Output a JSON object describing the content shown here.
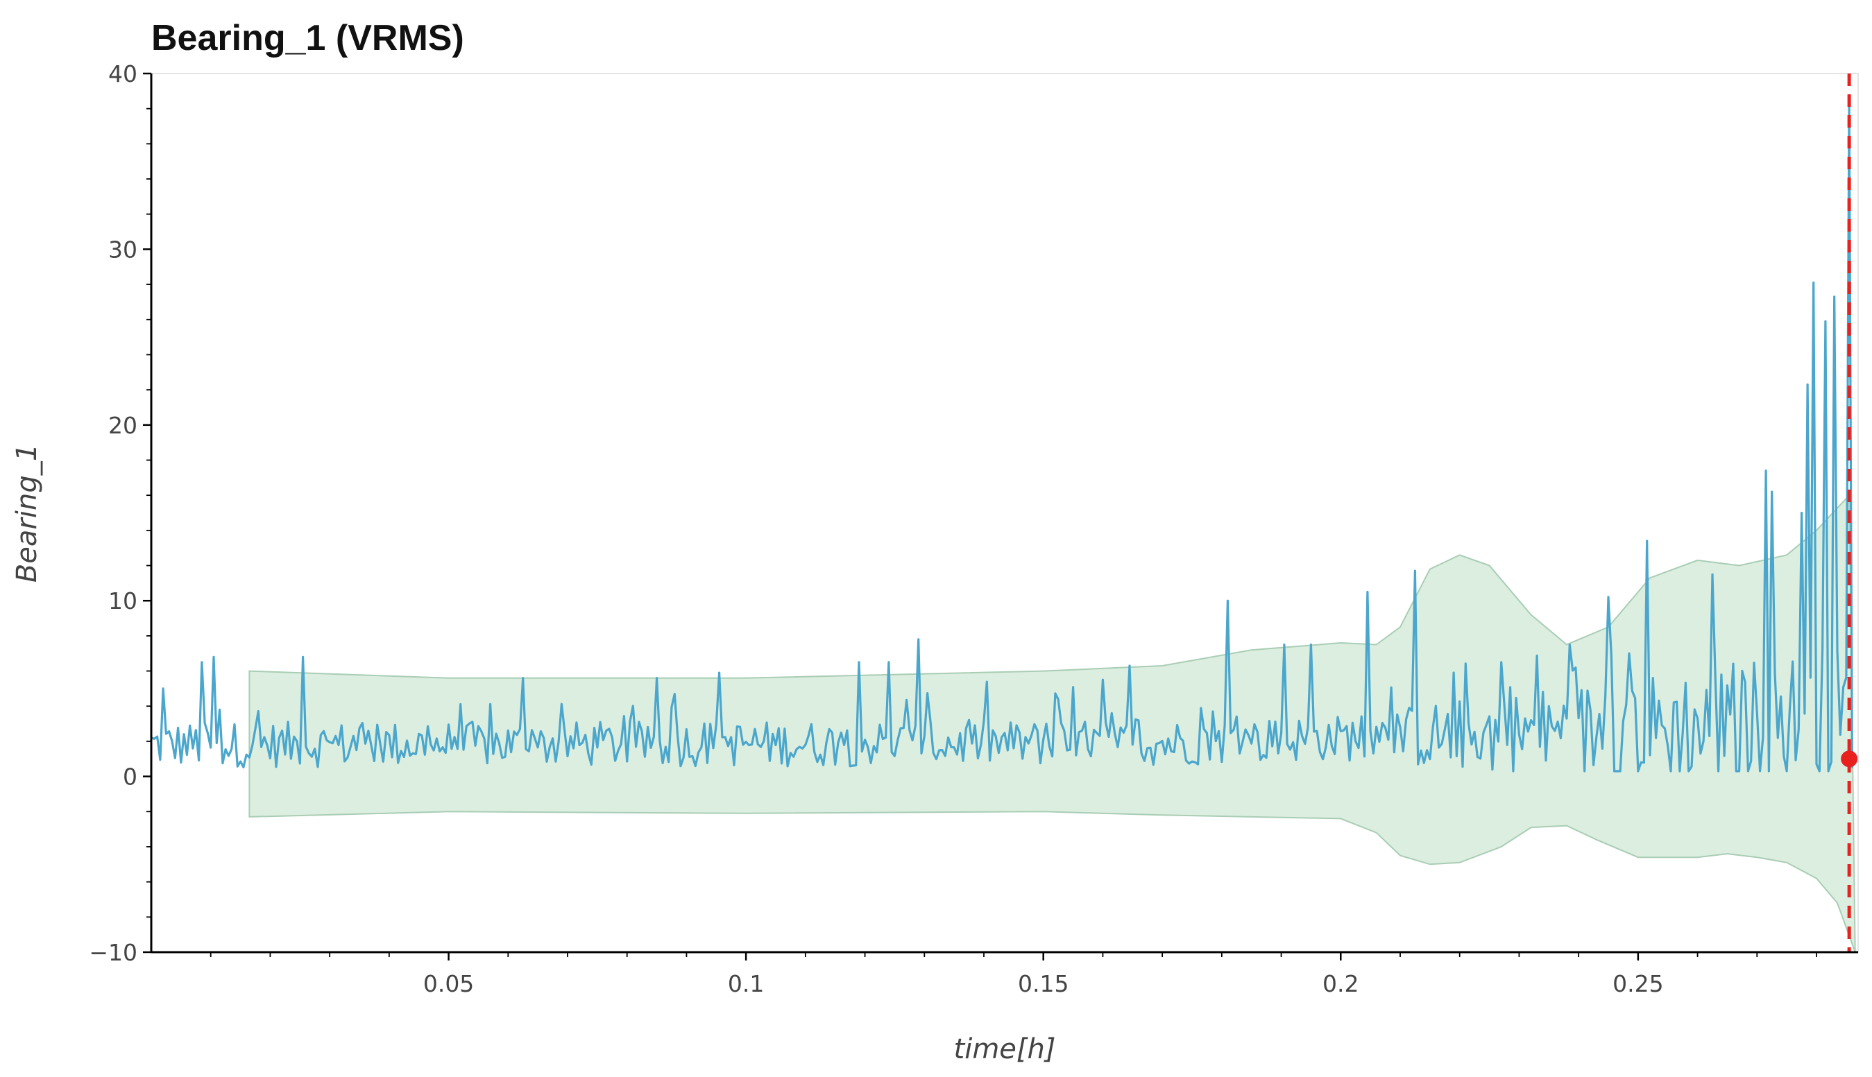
{
  "colors": {
    "line": "#4aa6cc",
    "band_fill": "#cfe8d6",
    "band_stroke": "#a9cdb4",
    "threshold": "#e8201e",
    "axis": "#000000",
    "text": "#444444"
  },
  "chart_data": {
    "type": "line",
    "title": "Bearing_1 (VRMS)",
    "xlabel": "time[h]",
    "ylabel": "Bearing_1",
    "xlim": [
      0.0,
      0.287
    ],
    "ylim": [
      -10,
      40
    ],
    "x_ticks": [
      0.05,
      0.1,
      0.15,
      0.2,
      0.25
    ],
    "x_tick_labels": [
      "0.05",
      "0.1",
      "0.15",
      "0.2",
      "0.25"
    ],
    "y_ticks": [
      -10,
      0,
      10,
      20,
      30,
      40
    ],
    "y_tick_labels": [
      "−10",
      "0",
      "10",
      "20",
      "30",
      "40"
    ],
    "grid": false,
    "threshold_x": 0.2855,
    "end_point": {
      "x": 0.2855,
      "y": 1.0
    },
    "series": [
      {
        "kind": "line",
        "sampling_dx": 0.0005,
        "base_level": [
          {
            "x": 0.0,
            "y": 1.8
          },
          {
            "x": 0.17,
            "y": 1.9
          },
          {
            "x": 0.2,
            "y": 2.2
          },
          {
            "x": 0.25,
            "y": 2.6
          },
          {
            "x": 0.28,
            "y": 3.0
          },
          {
            "x": 0.2865,
            "y": 3.2
          }
        ],
        "peaks": [
          {
            "x": 0.002,
            "y": 5.0
          },
          {
            "x": 0.0085,
            "y": 6.5
          },
          {
            "x": 0.0105,
            "y": 6.8
          },
          {
            "x": 0.0255,
            "y": 6.8
          },
          {
            "x": 0.0625,
            "y": 5.6
          },
          {
            "x": 0.085,
            "y": 5.6
          },
          {
            "x": 0.0955,
            "y": 5.9
          },
          {
            "x": 0.119,
            "y": 6.5
          },
          {
            "x": 0.124,
            "y": 6.5
          },
          {
            "x": 0.129,
            "y": 7.8
          },
          {
            "x": 0.16,
            "y": 5.5
          },
          {
            "x": 0.1645,
            "y": 6.3
          },
          {
            "x": 0.181,
            "y": 10.0
          },
          {
            "x": 0.1905,
            "y": 7.5
          },
          {
            "x": 0.195,
            "y": 7.5
          },
          {
            "x": 0.2045,
            "y": 10.5
          },
          {
            "x": 0.2125,
            "y": 11.7
          },
          {
            "x": 0.227,
            "y": 6.5
          },
          {
            "x": 0.2385,
            "y": 7.5
          },
          {
            "x": 0.2455,
            "y": 6.9
          },
          {
            "x": 0.2515,
            "y": 13.4
          },
          {
            "x": 0.2625,
            "y": 11.5
          },
          {
            "x": 0.2715,
            "y": 17.4
          },
          {
            "x": 0.2725,
            "y": 16.2
          },
          {
            "x": 0.2775,
            "y": 15.0
          },
          {
            "x": 0.2785,
            "y": 22.3
          },
          {
            "x": 0.2795,
            "y": 28.1
          },
          {
            "x": 0.2815,
            "y": 25.9
          },
          {
            "x": 0.283,
            "y": 27.3
          },
          {
            "x": 0.2855,
            "y": 38.3
          }
        ]
      },
      {
        "kind": "band",
        "upper": [
          {
            "x": 0.0165,
            "y": 6.0
          },
          {
            "x": 0.05,
            "y": 5.6
          },
          {
            "x": 0.1,
            "y": 5.6
          },
          {
            "x": 0.15,
            "y": 6.0
          },
          {
            "x": 0.17,
            "y": 6.3
          },
          {
            "x": 0.185,
            "y": 7.2
          },
          {
            "x": 0.2,
            "y": 7.6
          },
          {
            "x": 0.206,
            "y": 7.5
          },
          {
            "x": 0.21,
            "y": 8.5
          },
          {
            "x": 0.215,
            "y": 11.8
          },
          {
            "x": 0.22,
            "y": 12.6
          },
          {
            "x": 0.225,
            "y": 12.0
          },
          {
            "x": 0.232,
            "y": 9.2
          },
          {
            "x": 0.238,
            "y": 7.5
          },
          {
            "x": 0.245,
            "y": 8.5
          },
          {
            "x": 0.252,
            "y": 11.3
          },
          {
            "x": 0.26,
            "y": 12.3
          },
          {
            "x": 0.267,
            "y": 12.0
          },
          {
            "x": 0.275,
            "y": 12.6
          },
          {
            "x": 0.28,
            "y": 14.0
          },
          {
            "x": 0.2855,
            "y": 16.0
          }
        ],
        "lower": [
          {
            "x": 0.0165,
            "y": -2.3
          },
          {
            "x": 0.05,
            "y": -2.0
          },
          {
            "x": 0.1,
            "y": -2.1
          },
          {
            "x": 0.15,
            "y": -2.0
          },
          {
            "x": 0.17,
            "y": -2.2
          },
          {
            "x": 0.2,
            "y": -2.4
          },
          {
            "x": 0.206,
            "y": -3.2
          },
          {
            "x": 0.21,
            "y": -4.5
          },
          {
            "x": 0.215,
            "y": -5.0
          },
          {
            "x": 0.22,
            "y": -4.9
          },
          {
            "x": 0.227,
            "y": -4.0
          },
          {
            "x": 0.232,
            "y": -2.9
          },
          {
            "x": 0.238,
            "y": -2.8
          },
          {
            "x": 0.243,
            "y": -3.6
          },
          {
            "x": 0.25,
            "y": -4.6
          },
          {
            "x": 0.26,
            "y": -4.6
          },
          {
            "x": 0.265,
            "y": -4.4
          },
          {
            "x": 0.27,
            "y": -4.6
          },
          {
            "x": 0.275,
            "y": -4.9
          },
          {
            "x": 0.28,
            "y": -5.8
          },
          {
            "x": 0.2835,
            "y": -7.2
          },
          {
            "x": 0.2865,
            "y": -10.0
          }
        ]
      }
    ]
  }
}
